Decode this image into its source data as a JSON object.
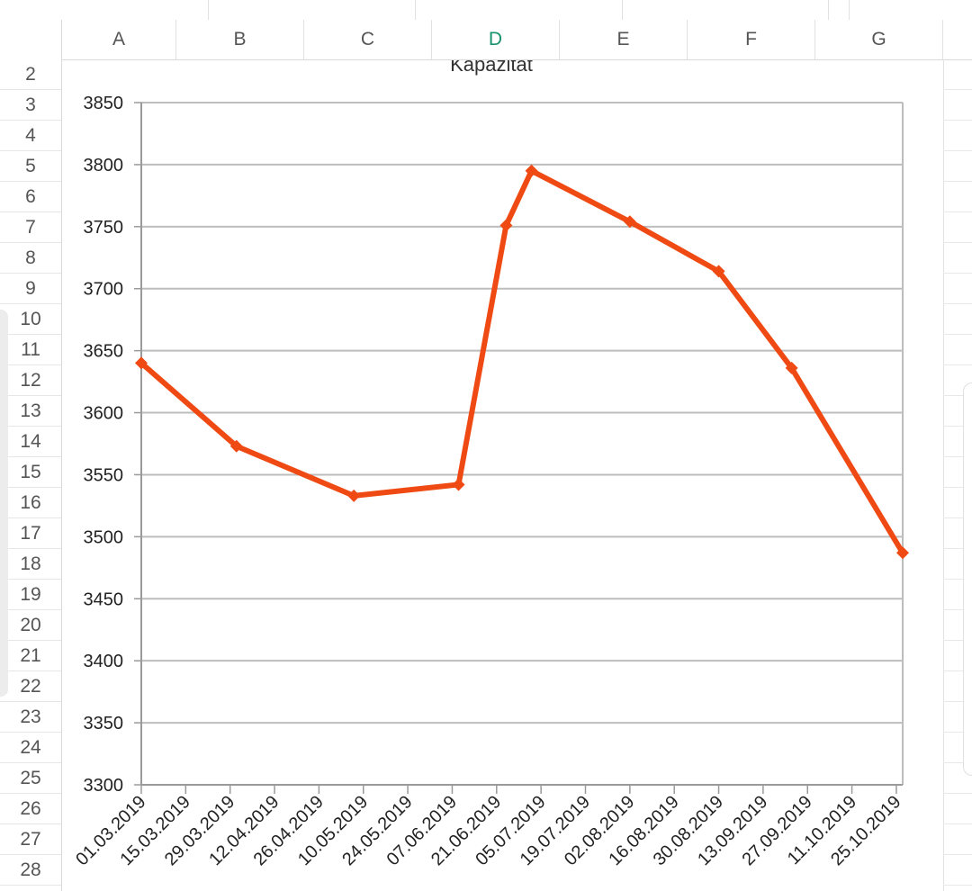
{
  "columns": [
    "A",
    "B",
    "C",
    "D",
    "E",
    "F",
    "G"
  ],
  "active_column": "D",
  "rows": [
    "2",
    "3",
    "4",
    "5",
    "6",
    "7",
    "8",
    "9",
    "10",
    "11",
    "12",
    "13",
    "14",
    "15",
    "16",
    "17",
    "18",
    "19",
    "20",
    "21",
    "22",
    "23",
    "24",
    "25",
    "26",
    "27",
    "28"
  ],
  "chart_data": {
    "type": "line",
    "title": "Kapazität",
    "xlabel": "",
    "ylabel": "",
    "ylim": [
      3300,
      3850
    ],
    "y_ticks": [
      3300,
      3350,
      3400,
      3450,
      3500,
      3550,
      3600,
      3650,
      3700,
      3750,
      3800,
      3850
    ],
    "x_tick_labels": [
      "01.03.2019",
      "15.03.2019",
      "29.03.2019",
      "12.04.2019",
      "26.04.2019",
      "10.05.2019",
      "24.05.2019",
      "07.06.2019",
      "21.06.2019",
      "05.07.2019",
      "19.07.2019",
      "02.08.2019",
      "16.08.2019",
      "30.08.2019",
      "13.09.2019",
      "27.09.2019",
      "11.10.2019",
      "25.10.2019"
    ],
    "grid": true,
    "series": [
      {
        "color": "#f04a14",
        "points": [
          {
            "x": "01.03.2019",
            "y": 3640
          },
          {
            "x": "31.03.2019",
            "y": 3573
          },
          {
            "x": "07.05.2019",
            "y": 3533
          },
          {
            "x": "09.06.2019",
            "y": 3542
          },
          {
            "x": "24.06.2019",
            "y": 3751
          },
          {
            "x": "02.07.2019",
            "y": 3795
          },
          {
            "x": "02.08.2019",
            "y": 3754
          },
          {
            "x": "30.08.2019",
            "y": 3714
          },
          {
            "x": "22.09.2019",
            "y": 3636
          },
          {
            "x": "27.10.2019",
            "y": 3487
          }
        ]
      }
    ]
  }
}
